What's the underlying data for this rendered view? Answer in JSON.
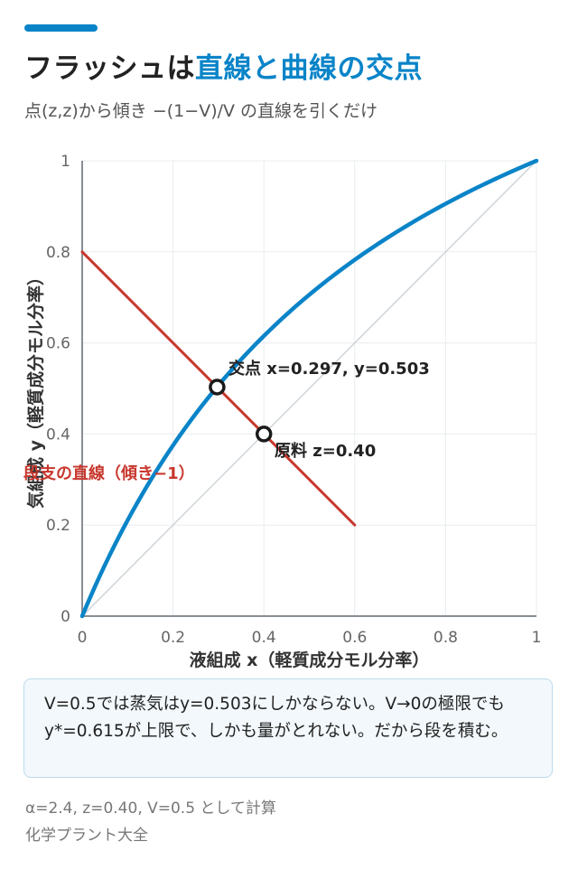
{
  "header": {
    "accent_color": "#0a84c8",
    "title_part1": "フラッシュは",
    "title_part2": "直線と曲線の交点",
    "subtitle": "点(z,z)から傾き −(1−V)/V の直線を引くだけ"
  },
  "chart_data": {
    "type": "line",
    "xlabel": "液組成 x（軽質成分モル分率）",
    "ylabel": "気組成 y（軽質成分モル分率）",
    "xlim": [
      0,
      1
    ],
    "ylim": [
      0,
      1
    ],
    "x_ticks": [
      "0",
      "0.2",
      "0.4",
      "0.6",
      "0.8",
      "1"
    ],
    "y_ticks": [
      "0",
      "0.2",
      "0.4",
      "0.6",
      "0.8",
      "1"
    ],
    "grid": true,
    "alpha": 2.4,
    "series": [
      {
        "name": "",
        "kind": "equilibrium",
        "color": "#0a84c8",
        "x": [
          0,
          0.1,
          0.2,
          0.3,
          0.4,
          0.5,
          0.6,
          0.7,
          0.8,
          0.9,
          1
        ],
        "y": [
          0,
          0.211,
          0.375,
          0.507,
          0.615,
          0.706,
          0.783,
          0.848,
          0.906,
          0.956,
          1
        ]
      },
      {
        "name": "",
        "kind": "diagonal",
        "color": "#cfd4d8",
        "x": [
          0,
          1
        ],
        "y": [
          0,
          1
        ]
      },
      {
        "name": "段支の直線（傾き−1）",
        "kind": "operating",
        "color": "#c8372d",
        "x": [
          0,
          0.6
        ],
        "y": [
          0.8,
          0.2
        ]
      }
    ],
    "points": [
      {
        "label": "交点 x=0.297, y=0.503",
        "x": 0.297,
        "y": 0.503
      },
      {
        "label": "原料 z=0.40",
        "x": 0.4,
        "y": 0.4
      }
    ]
  },
  "note": {
    "text": "V=0.5では蒸気はy=0.503にしかならない。V→0の極限でもy*=0.615が上限で、しかも量がとれない。だから段を積む。"
  },
  "footnote": "α=2.4, z=0.40, V=0.5 として計算",
  "source": "化学プラント大全"
}
